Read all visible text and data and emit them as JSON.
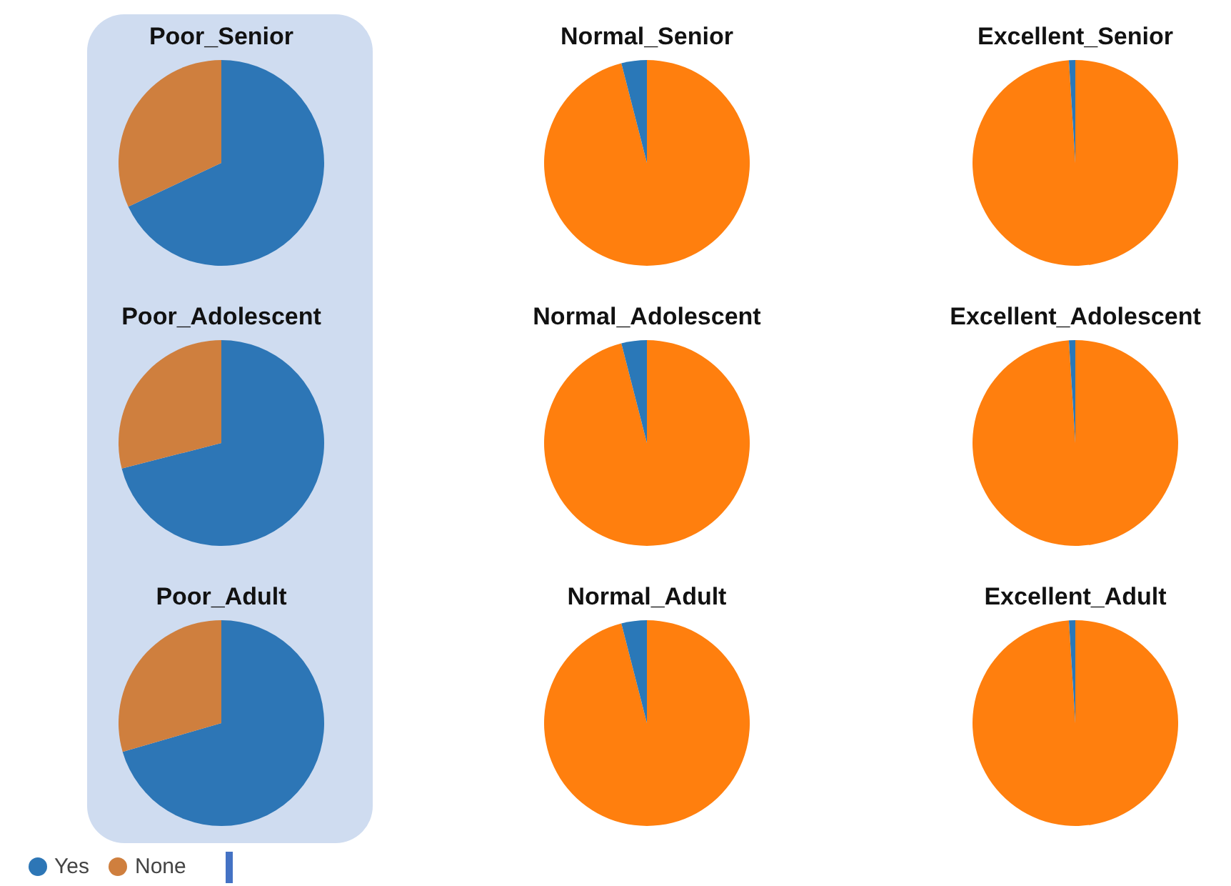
{
  "chart_data": [
    {
      "type": "pie",
      "title": "Poor_Senior",
      "categories": [
        "Yes",
        "None"
      ],
      "values": [
        68,
        32
      ],
      "colors": [
        "#2d76b6",
        "#cf7f3e"
      ],
      "legend": "bottom left"
    },
    {
      "type": "pie",
      "title": "Normal_Senior",
      "categories": [
        null,
        null
      ],
      "values": [
        96,
        4
      ],
      "colors": [
        "#ff7f0e",
        "#2a78b8"
      ]
    },
    {
      "type": "pie",
      "title": "Excellent_Senior",
      "categories": [
        null,
        null
      ],
      "values": [
        99,
        1
      ],
      "colors": [
        "#ff7f0e",
        "#2a78b8"
      ]
    },
    {
      "type": "pie",
      "title": "Poor_Adolescent",
      "categories": [
        null,
        null
      ],
      "values": [
        71,
        29
      ],
      "colors": [
        "#2d76b6",
        "#cf7f3e"
      ]
    },
    {
      "type": "pie",
      "title": "Normal_Adolescent",
      "categories": [
        null,
        null
      ],
      "values": [
        96,
        4
      ],
      "colors": [
        "#ff7f0e",
        "#2a78b8"
      ]
    },
    {
      "type": "pie",
      "title": "Excellent_Adolescent",
      "categories": [
        null,
        null
      ],
      "values": [
        99,
        1
      ],
      "colors": [
        "#ff7f0e",
        "#2a78b8"
      ]
    },
    {
      "type": "pie",
      "title": "Poor_Adult",
      "categories": [
        null,
        null
      ],
      "values": [
        70.5,
        29.5
      ],
      "colors": [
        "#2d76b6",
        "#cf7f3e"
      ]
    },
    {
      "type": "pie",
      "title": "Normal_Adult",
      "categories": [
        null,
        null
      ],
      "values": [
        96,
        4
      ],
      "colors": [
        "#ff7f0e",
        "#2a78b8"
      ]
    },
    {
      "type": "pie",
      "title": "Excellent_Adult",
      "categories": [
        null,
        null
      ],
      "values": [
        99,
        1
      ],
      "colors": [
        "#ff7f0e",
        "#2a78b8"
      ]
    }
  ]
}
